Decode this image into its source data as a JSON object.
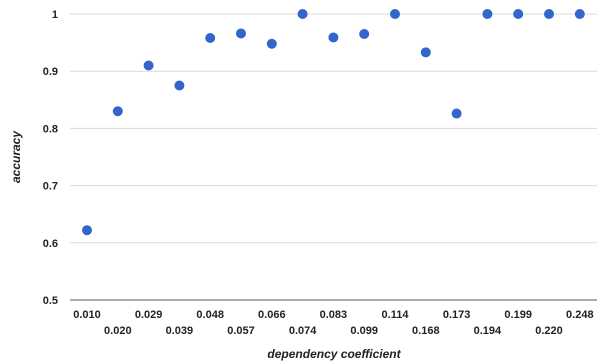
{
  "chart_data": {
    "type": "scatter",
    "title": "",
    "xlabel": "dependency coefficient",
    "ylabel": "accuracy",
    "ylim": [
      0.5,
      1.0
    ],
    "yticks": [
      "0.5",
      "0.6",
      "0.7",
      "0.8",
      "0.9",
      "1"
    ],
    "grid": true,
    "legend": "none",
    "colors": {
      "points": "#3366cc",
      "grid": "#d9d9d9",
      "text": "#222222"
    },
    "categories": [
      "0.010",
      "0.020",
      "0.029",
      "0.039",
      "0.048",
      "0.057",
      "0.066",
      "0.074",
      "0.083",
      "0.099",
      "0.114",
      "0.168",
      "0.173",
      "0.194",
      "0.199",
      "0.220",
      "0.248"
    ],
    "values": [
      0.622,
      0.83,
      0.91,
      0.875,
      0.958,
      0.966,
      0.948,
      1.0,
      0.959,
      0.965,
      1.0,
      0.933,
      0.826,
      1.0,
      1.0,
      1.0,
      1.0
    ]
  }
}
